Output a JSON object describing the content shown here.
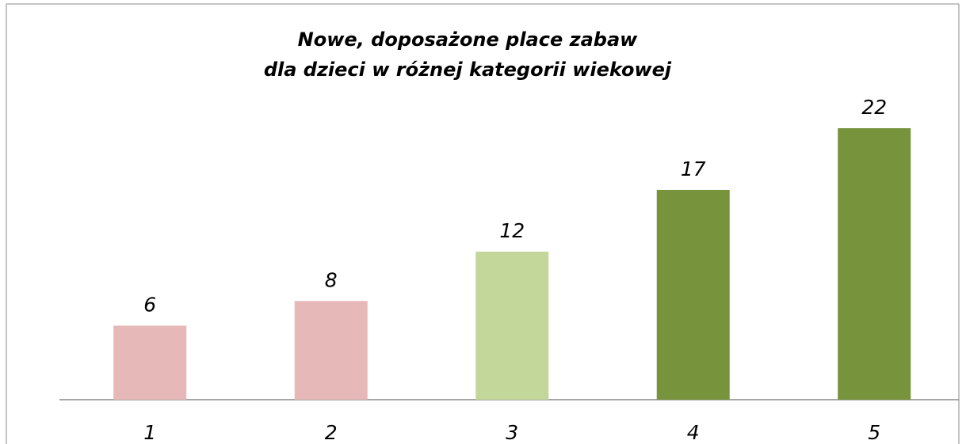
{
  "chart_data": {
    "type": "bar",
    "title": [
      "Nowe, doposażone place zabaw",
      "dla dzieci w różnej kategorii wiekowej"
    ],
    "categories": [
      "1",
      "2",
      "3",
      "4",
      "5"
    ],
    "values": [
      6,
      8,
      12,
      17,
      22
    ],
    "colors": [
      "#e6b9b8",
      "#e6b9b8",
      "#c4d79b",
      "#77933c",
      "#77933c"
    ]
  }
}
